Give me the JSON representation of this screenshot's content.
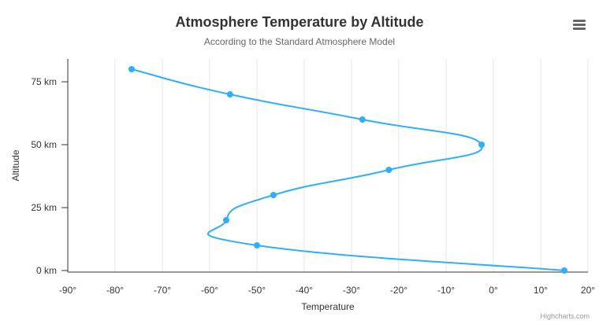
{
  "chart_data": {
    "type": "line",
    "title": "Atmosphere Temperature by Altitude",
    "subtitle": "According to the Standard Atmosphere Model",
    "xlabel": "Temperature",
    "ylabel": "Altitude",
    "xlim": [
      -90,
      20
    ],
    "ylim": [
      0,
      80
    ],
    "inverted": true,
    "x_ticks": [
      -90,
      -80,
      -70,
      -60,
      -50,
      -40,
      -30,
      -20,
      -10,
      0,
      10,
      20
    ],
    "x_tick_labels": [
      "-90°",
      "-80°",
      "-70°",
      "-60°",
      "-50°",
      "-40°",
      "-30°",
      "-20°",
      "-10°",
      "0°",
      "10°",
      "20°"
    ],
    "y_ticks": [
      0,
      25,
      50,
      75
    ],
    "y_tick_labels": [
      "0 km",
      "25 km",
      "50 km",
      "75 km"
    ],
    "grid": "vertical",
    "series": [
      {
        "color": "#2caffe",
        "points": [
          {
            "altitude": 0,
            "temperature": 15
          },
          {
            "altitude": 10,
            "temperature": -50
          },
          {
            "altitude": 20,
            "temperature": -56.5
          },
          {
            "altitude": 30,
            "temperature": -46.5
          },
          {
            "altitude": 40,
            "temperature": -22.1
          },
          {
            "altitude": 50,
            "temperature": -2.5
          },
          {
            "altitude": 60,
            "temperature": -27.7
          },
          {
            "altitude": 70,
            "temperature": -55.7
          },
          {
            "altitude": 80,
            "temperature": -76.5
          }
        ]
      }
    ]
  },
  "credit": "Highcharts.com",
  "icons": {
    "menu": "hamburger-menu-icon"
  }
}
